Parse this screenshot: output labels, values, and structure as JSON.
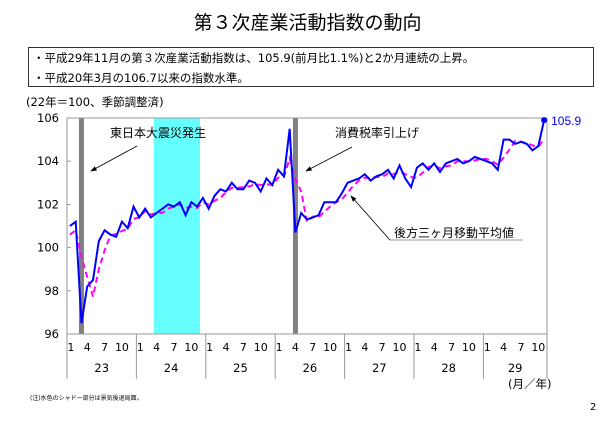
{
  "title": "第３次産業活動指数の動向",
  "summary": [
    "・平成29年11月の第３次産業活動指数は、105.9(前月比1.1%)と2か月連続の上昇。",
    "・平成20年3月の106.7以来の指数水準。"
  ],
  "basis": "(22年＝100、季節調整済)",
  "note": "(注)水色のシャドー部分は景気後退局面。",
  "page_number": "2",
  "chart_data": {
    "type": "line",
    "ylim": [
      96,
      106
    ],
    "yticks": [
      "96",
      "98",
      "100",
      "102",
      "104",
      "106"
    ],
    "month_ticks": [
      "1",
      "4",
      "7",
      "10"
    ],
    "years": [
      "23",
      "24",
      "25",
      "26",
      "27",
      "28",
      "29"
    ],
    "x_unit_label": "(月／年)",
    "start": "H23-01",
    "end": "H29-11",
    "series": [
      {
        "name": "第3次産業活動指数",
        "color": "#0000ff",
        "values": [
          101.0,
          101.2,
          96.5,
          98.2,
          98.5,
          100.3,
          100.8,
          100.6,
          100.5,
          101.2,
          100.9,
          101.9,
          101.4,
          101.8,
          101.4,
          101.6,
          101.8,
          102.0,
          101.9,
          102.1,
          101.5,
          102.1,
          101.9,
          102.3,
          101.8,
          102.4,
          102.7,
          102.6,
          103.0,
          102.7,
          102.7,
          103.1,
          103.0,
          102.6,
          103.2,
          102.9,
          103.6,
          103.3,
          105.5,
          100.7,
          101.6,
          101.3,
          101.4,
          101.5,
          102.1,
          102.1,
          102.1,
          102.5,
          103.0,
          103.1,
          103.2,
          103.4,
          103.1,
          103.3,
          103.4,
          103.6,
          103.2,
          103.8,
          103.2,
          102.8,
          103.7,
          103.9,
          103.6,
          103.9,
          103.5,
          103.9,
          104.0,
          104.1,
          103.9,
          104.0,
          104.2,
          104.1,
          104.0,
          103.9,
          103.6,
          105.0,
          105.0,
          104.8,
          104.9,
          104.8,
          104.5,
          104.7,
          105.9
        ]
      },
      {
        "name": "後方三ヶ月移動平均値",
        "color": "#ff00ff",
        "style": "dashed",
        "seed": [
          100.6,
          100.8
        ]
      }
    ],
    "last_value_label": "105.9",
    "shading": [
      {
        "type": "recession",
        "color": "#66ffff",
        "from": "H24-04",
        "to": "H24-11"
      },
      {
        "type": "event",
        "color": "#808080",
        "at": "H23-03"
      },
      {
        "type": "event",
        "color": "#808080",
        "at": "H26-04"
      }
    ],
    "annotations": [
      {
        "text": "東日本大震災発生"
      },
      {
        "text": "消費税率引上げ"
      },
      {
        "text": "後方三ヶ月移動平均値"
      }
    ]
  }
}
